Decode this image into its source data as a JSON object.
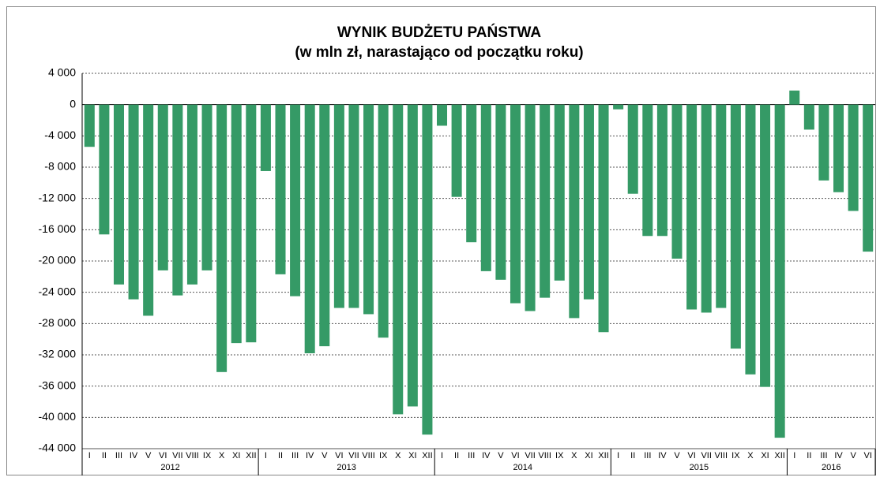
{
  "chart_data": {
    "type": "bar",
    "title": "WYNIK BUDŻETU PAŃSTWA",
    "subtitle": "(w mln zł, narastająco od początku roku)",
    "categories": [
      "I",
      "II",
      "III",
      "IV",
      "V",
      "VI",
      "VII",
      "VIII",
      "IX",
      "X",
      "XI",
      "XII",
      "I",
      "II",
      "III",
      "IV",
      "V",
      "VI",
      "VII",
      "VIII",
      "IX",
      "X",
      "XI",
      "XII",
      "I",
      "II",
      "III",
      "IV",
      "V",
      "VI",
      "VII",
      "VIII",
      "IX",
      "X",
      "XI",
      "XII",
      "I",
      "II",
      "III",
      "IV",
      "V",
      "VI",
      "VII",
      "VIII",
      "IX",
      "X",
      "XI",
      "XII",
      "I",
      "II",
      "III",
      "IV",
      "V",
      "VI"
    ],
    "years": [
      "2012",
      "2013",
      "2014",
      "2015",
      "2016"
    ],
    "values": [
      -5400,
      -16600,
      -23000,
      -24900,
      -27000,
      -21200,
      -24400,
      -23000,
      -21200,
      -34200,
      -30500,
      -30400,
      -8500,
      -21700,
      -24500,
      -31800,
      -30900,
      -26000,
      -26000,
      -26800,
      -29800,
      -39600,
      -38600,
      -42200,
      -2700,
      -11800,
      -17600,
      -21300,
      -22400,
      -25400,
      -26400,
      -24700,
      -22500,
      -27300,
      -24900,
      -29100,
      -600,
      -11400,
      -16800,
      -16800,
      -19700,
      -26200,
      -26600,
      -26000,
      -31200,
      -34500,
      -36100,
      -42600,
      1800,
      -3200,
      -9700,
      -11200,
      -13600,
      -18800
    ],
    "color": "#359a66",
    "ylim": [
      -44000,
      4000
    ],
    "yticks": [
      {
        "value": 4000,
        "label": "4 000"
      },
      0,
      {
        "value": -4000,
        "label": "-4 000"
      },
      {
        "value": -8000,
        "label": "-8 000"
      },
      {
        "value": -12000,
        "label": "-12 000"
      },
      {
        "value": -16000,
        "label": "-16 000"
      },
      {
        "value": -20000,
        "label": "-20 000"
      },
      {
        "value": -24000,
        "label": "-24 000"
      },
      {
        "value": -28000,
        "label": "-28 000"
      },
      {
        "value": -32000,
        "label": "-32 000"
      },
      {
        "value": -36000,
        "label": "-36 000"
      },
      {
        "value": -40000,
        "label": "-40 000"
      },
      {
        "value": -44000,
        "label": "-44 000"
      }
    ],
    "grid": true
  }
}
